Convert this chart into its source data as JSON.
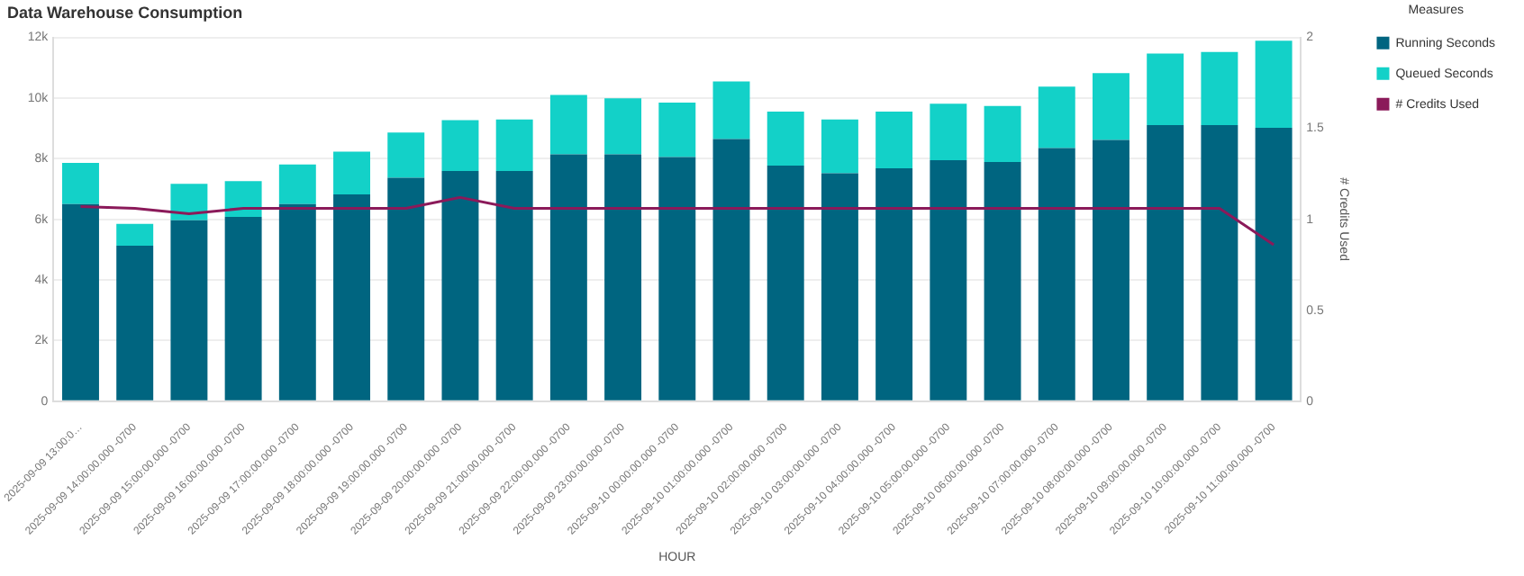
{
  "chart_data": {
    "type": "bar",
    "title": "Data Warehouse Consumption",
    "xlabel": "HOUR",
    "y2label": "# Credits Used",
    "legend_title": "Measures",
    "legend": "right",
    "grid": "y",
    "stacked": true,
    "categories": [
      "2025-09-09 13:00:0…",
      "2025-09-09 14:00:00.000 -0700",
      "2025-09-09 15:00:00.000 -0700",
      "2025-09-09 16:00:00.000 -0700",
      "2025-09-09 17:00:00.000 -0700",
      "2025-09-09 18:00:00.000 -0700",
      "2025-09-09 19:00:00.000 -0700",
      "2025-09-09 20:00:00.000 -0700",
      "2025-09-09 21:00:00.000 -0700",
      "2025-09-09 22:00:00.000 -0700",
      "2025-09-09 23:00:00.000 -0700",
      "2025-09-10 00:00:00.000 -0700",
      "2025-09-10 01:00:00.000 -0700",
      "2025-09-10 02:00:00.000 -0700",
      "2025-09-10 03:00:00.000 -0700",
      "2025-09-10 04:00:00.000 -0700",
      "2025-09-10 05:00:00.000 -0700",
      "2025-09-10 06:00:00.000 -0700",
      "2025-09-10 07:00:00.000 -0700",
      "2025-09-10 08:00:00.000 -0700",
      "2025-09-10 09:00:00.000 -0700",
      "2025-09-10 10:00:00.000 -0700",
      "2025-09-10 11:00:00.000 -0700"
    ],
    "series": [
      {
        "name": "Running Seconds",
        "color": "#006580",
        "values": [
          6500,
          5130,
          5970,
          6080,
          6500,
          6820,
          7370,
          7590,
          7590,
          8140,
          8140,
          8050,
          8650,
          7770,
          7520,
          7680,
          7950,
          7890,
          8350,
          8620,
          9110,
          9110,
          9020
        ]
      },
      {
        "name": "Queued Seconds",
        "color": "#13d1c8",
        "values": [
          1360,
          720,
          1200,
          1180,
          1310,
          1410,
          1490,
          1680,
          1700,
          1960,
          1850,
          1800,
          1900,
          1780,
          1770,
          1870,
          1860,
          1850,
          2030,
          2200,
          2360,
          2410,
          2870
        ]
      },
      {
        "name": "# Credits Used",
        "type": "line",
        "axis": "y2",
        "color": "#8b1a5a",
        "values": [
          1.07,
          1.06,
          1.03,
          1.06,
          1.06,
          1.06,
          1.06,
          1.12,
          1.06,
          1.06,
          1.06,
          1.06,
          1.06,
          1.06,
          1.06,
          1.06,
          1.06,
          1.06,
          1.06,
          1.06,
          1.06,
          1.06,
          0.86
        ]
      }
    ],
    "ylim": [
      0,
      12000
    ],
    "yticks": [
      0,
      {
        "value": 2000,
        "label": "2k"
      },
      {
        "value": 4000,
        "label": "4k"
      },
      {
        "value": 6000,
        "label": "6k"
      },
      {
        "value": 8000,
        "label": "8k"
      },
      {
        "value": 10000,
        "label": "10k"
      },
      {
        "value": 12000,
        "label": "12k"
      }
    ],
    "y2lim": [
      0,
      2
    ],
    "y2ticks": [
      0,
      0.5,
      1,
      1.5,
      2
    ]
  }
}
